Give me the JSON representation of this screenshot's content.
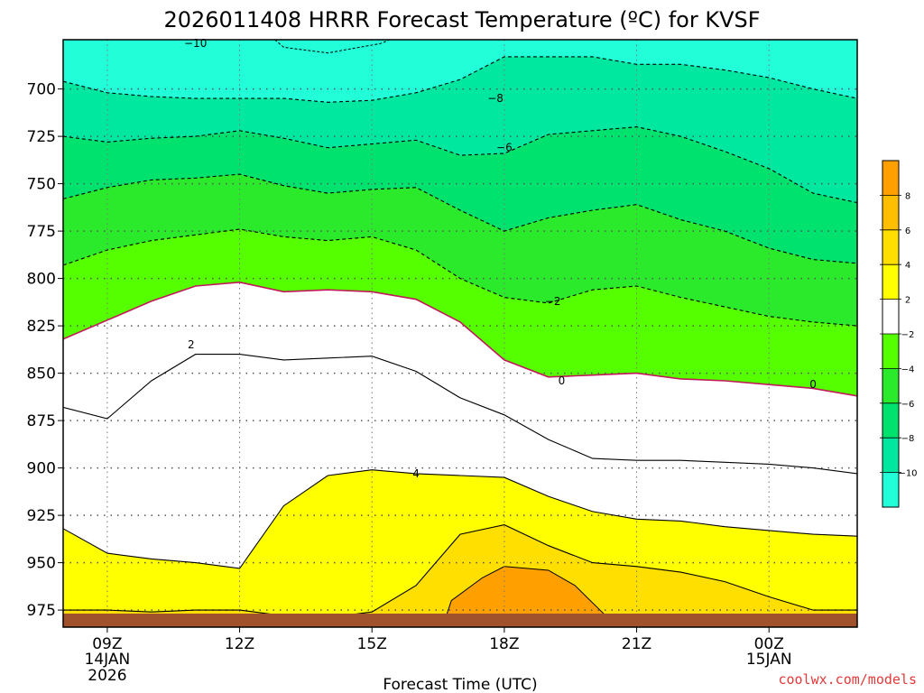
{
  "chart_data": {
    "type": "heatmap",
    "title": "2026011408 HRRR Forecast Temperature (ºC) for KVSF",
    "xlabel": "Forecast Time (UTC)",
    "ylabel": "",
    "y_ticks": [
      "700",
      "725",
      "750",
      "775",
      "800",
      "825",
      "850",
      "875",
      "900",
      "925",
      "950",
      "975"
    ],
    "x_ticks": [
      {
        "hour": 9,
        "label": "09Z",
        "sub1": "14JAN",
        "sub2": "2026"
      },
      {
        "hour": 12,
        "label": "12Z",
        "sub1": "",
        "sub2": ""
      },
      {
        "hour": 15,
        "label": "15Z",
        "sub1": "",
        "sub2": ""
      },
      {
        "hour": 18,
        "label": "18Z",
        "sub1": "",
        "sub2": ""
      },
      {
        "hour": 21,
        "label": "21Z",
        "sub1": "",
        "sub2": ""
      },
      {
        "hour": 24,
        "label": "00Z",
        "sub1": "15JAN",
        "sub2": ""
      }
    ],
    "xlim_hours": [
      8,
      26
    ],
    "ylim_hpa": [
      674,
      984
    ],
    "x_hours": [
      8,
      9,
      10,
      11,
      12,
      13,
      14,
      15,
      16,
      17,
      18,
      19,
      20,
      21,
      22,
      23,
      24,
      25,
      26
    ],
    "colorbar": {
      "ticks": [
        "8",
        "6",
        "4",
        "2",
        "−2",
        "−4",
        "−6",
        "−8",
        "−10"
      ],
      "colors": [
        "#ff9f00",
        "#ffbf00",
        "#ffdf00",
        "#ffff00",
        "#ffffff",
        "#55ff00",
        "#2bea2b",
        "#00e26e",
        "#00e8a0",
        "#22ffd8"
      ]
    },
    "contour_labels": [
      "−10",
      "−8",
      "−6",
      "−2",
      "2",
      "0",
      "0",
      "4"
    ],
    "contours": [
      {
        "level": -8,
        "pressure": [
          696,
          702,
          704,
          705,
          705,
          705,
          707,
          706,
          702,
          695,
          683,
          683,
          683,
          687,
          687,
          690,
          694,
          700,
          705
        ]
      },
      {
        "level": -6,
        "pressure": [
          725,
          728,
          726,
          725,
          722,
          726,
          731,
          729,
          727,
          735,
          734,
          724,
          722,
          720,
          725,
          733,
          742,
          755,
          760
        ]
      },
      {
        "level": -4,
        "pressure": [
          758,
          752,
          748,
          747,
          745,
          751,
          755,
          753,
          752,
          764,
          775,
          768,
          764,
          761,
          769,
          775,
          784,
          790,
          792
        ]
      },
      {
        "level": -2,
        "pressure": [
          793,
          785,
          780,
          777,
          774,
          778,
          780,
          778,
          785,
          800,
          810,
          813,
          806,
          804,
          810,
          815,
          820,
          823,
          825
        ]
      },
      {
        "level": 0,
        "pressure": [
          832,
          822,
          812,
          804,
          802,
          807,
          806,
          807,
          811,
          823,
          843,
          852,
          851,
          850,
          853,
          854,
          856,
          858,
          862
        ]
      },
      {
        "level": 2,
        "pressure": [
          868,
          874,
          854,
          840,
          840,
          843,
          842,
          841,
          849,
          863,
          872,
          885,
          895,
          896,
          896,
          897,
          898,
          900,
          903
        ]
      },
      {
        "level": 4,
        "pressure": [
          932,
          945,
          948,
          950,
          953,
          920,
          904,
          901,
          903,
          904,
          905,
          915,
          923,
          927,
          928,
          931,
          933,
          935,
          936
        ]
      },
      {
        "level": 6,
        "pressure": [
          975,
          975,
          976,
          975,
          975,
          978,
          979,
          976,
          962,
          935,
          930,
          941,
          950,
          952,
          955,
          960,
          968,
          975,
          975
        ]
      }
    ]
  },
  "footer": {
    "credit": "coolwx.com/models"
  }
}
